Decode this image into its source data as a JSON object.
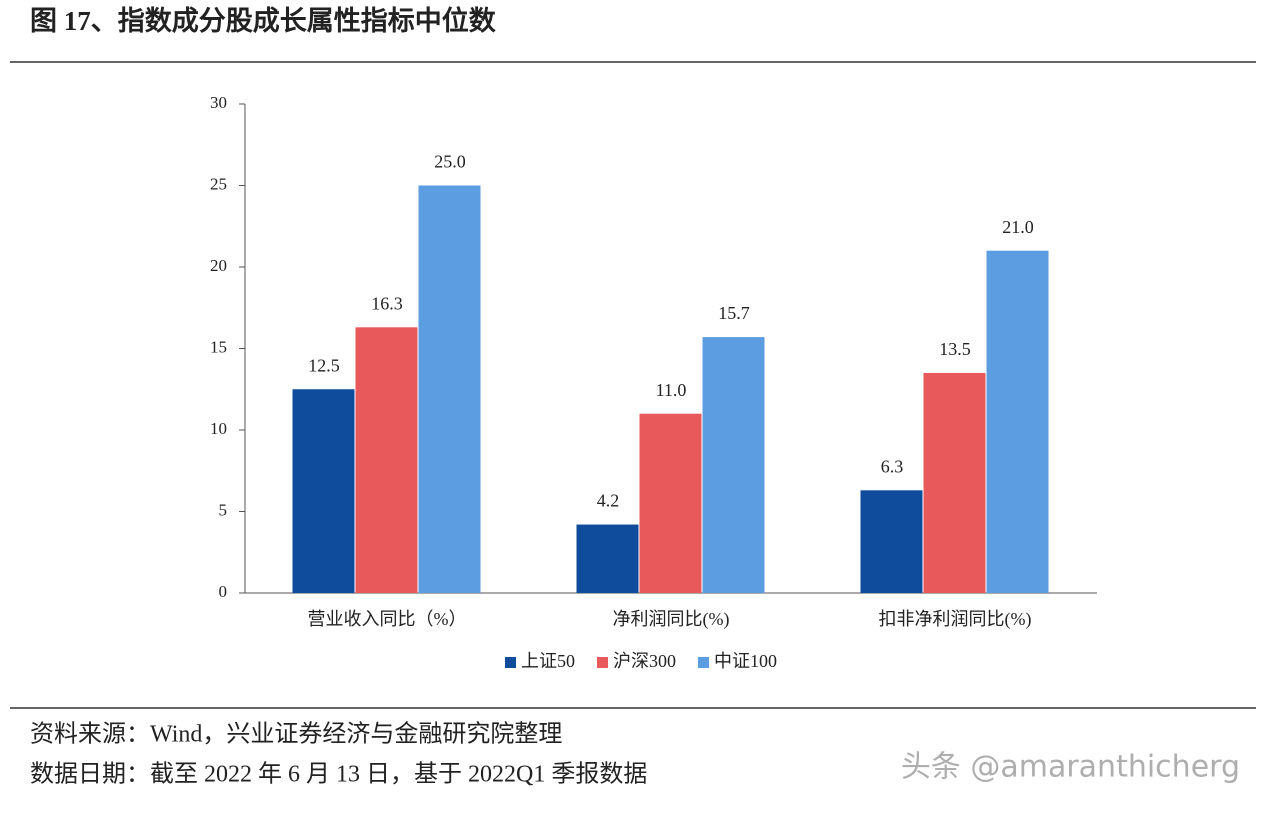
{
  "chart_data": {
    "type": "bar",
    "title": "图 17、指数成分股成长属性指标中位数",
    "categories": [
      "营业收入同比（%）",
      "净利润同比(%)",
      "扣非净利润同比(%)"
    ],
    "series": [
      {
        "name": "上证50",
        "color": "#0f4c9c",
        "values": [
          12.5,
          4.2,
          6.3
        ],
        "value_labels": [
          "12.5",
          "4.2",
          "6.3"
        ]
      },
      {
        "name": "沪深300",
        "color": "#e8595b",
        "values": [
          16.3,
          11.0,
          13.5
        ],
        "value_labels": [
          "16.3",
          "11.0",
          "13.5"
        ]
      },
      {
        "name": "中证100",
        "color": "#5c9de2",
        "values": [
          25.0,
          15.7,
          21.0
        ],
        "value_labels": [
          "25.0",
          "15.7",
          "21.0"
        ]
      }
    ],
    "ylim": [
      0,
      30
    ],
    "yticks": [
      0,
      5,
      10,
      15,
      20,
      25,
      30
    ],
    "grid": false,
    "legend": "bottom"
  },
  "footer": {
    "source": "资料来源：Wind，兴业证券经济与金融研究院整理",
    "date": "数据日期：截至 2022 年 6 月 13 日，基于 2022Q1 季报数据"
  },
  "watermark": "头条 @amaranthicherg"
}
